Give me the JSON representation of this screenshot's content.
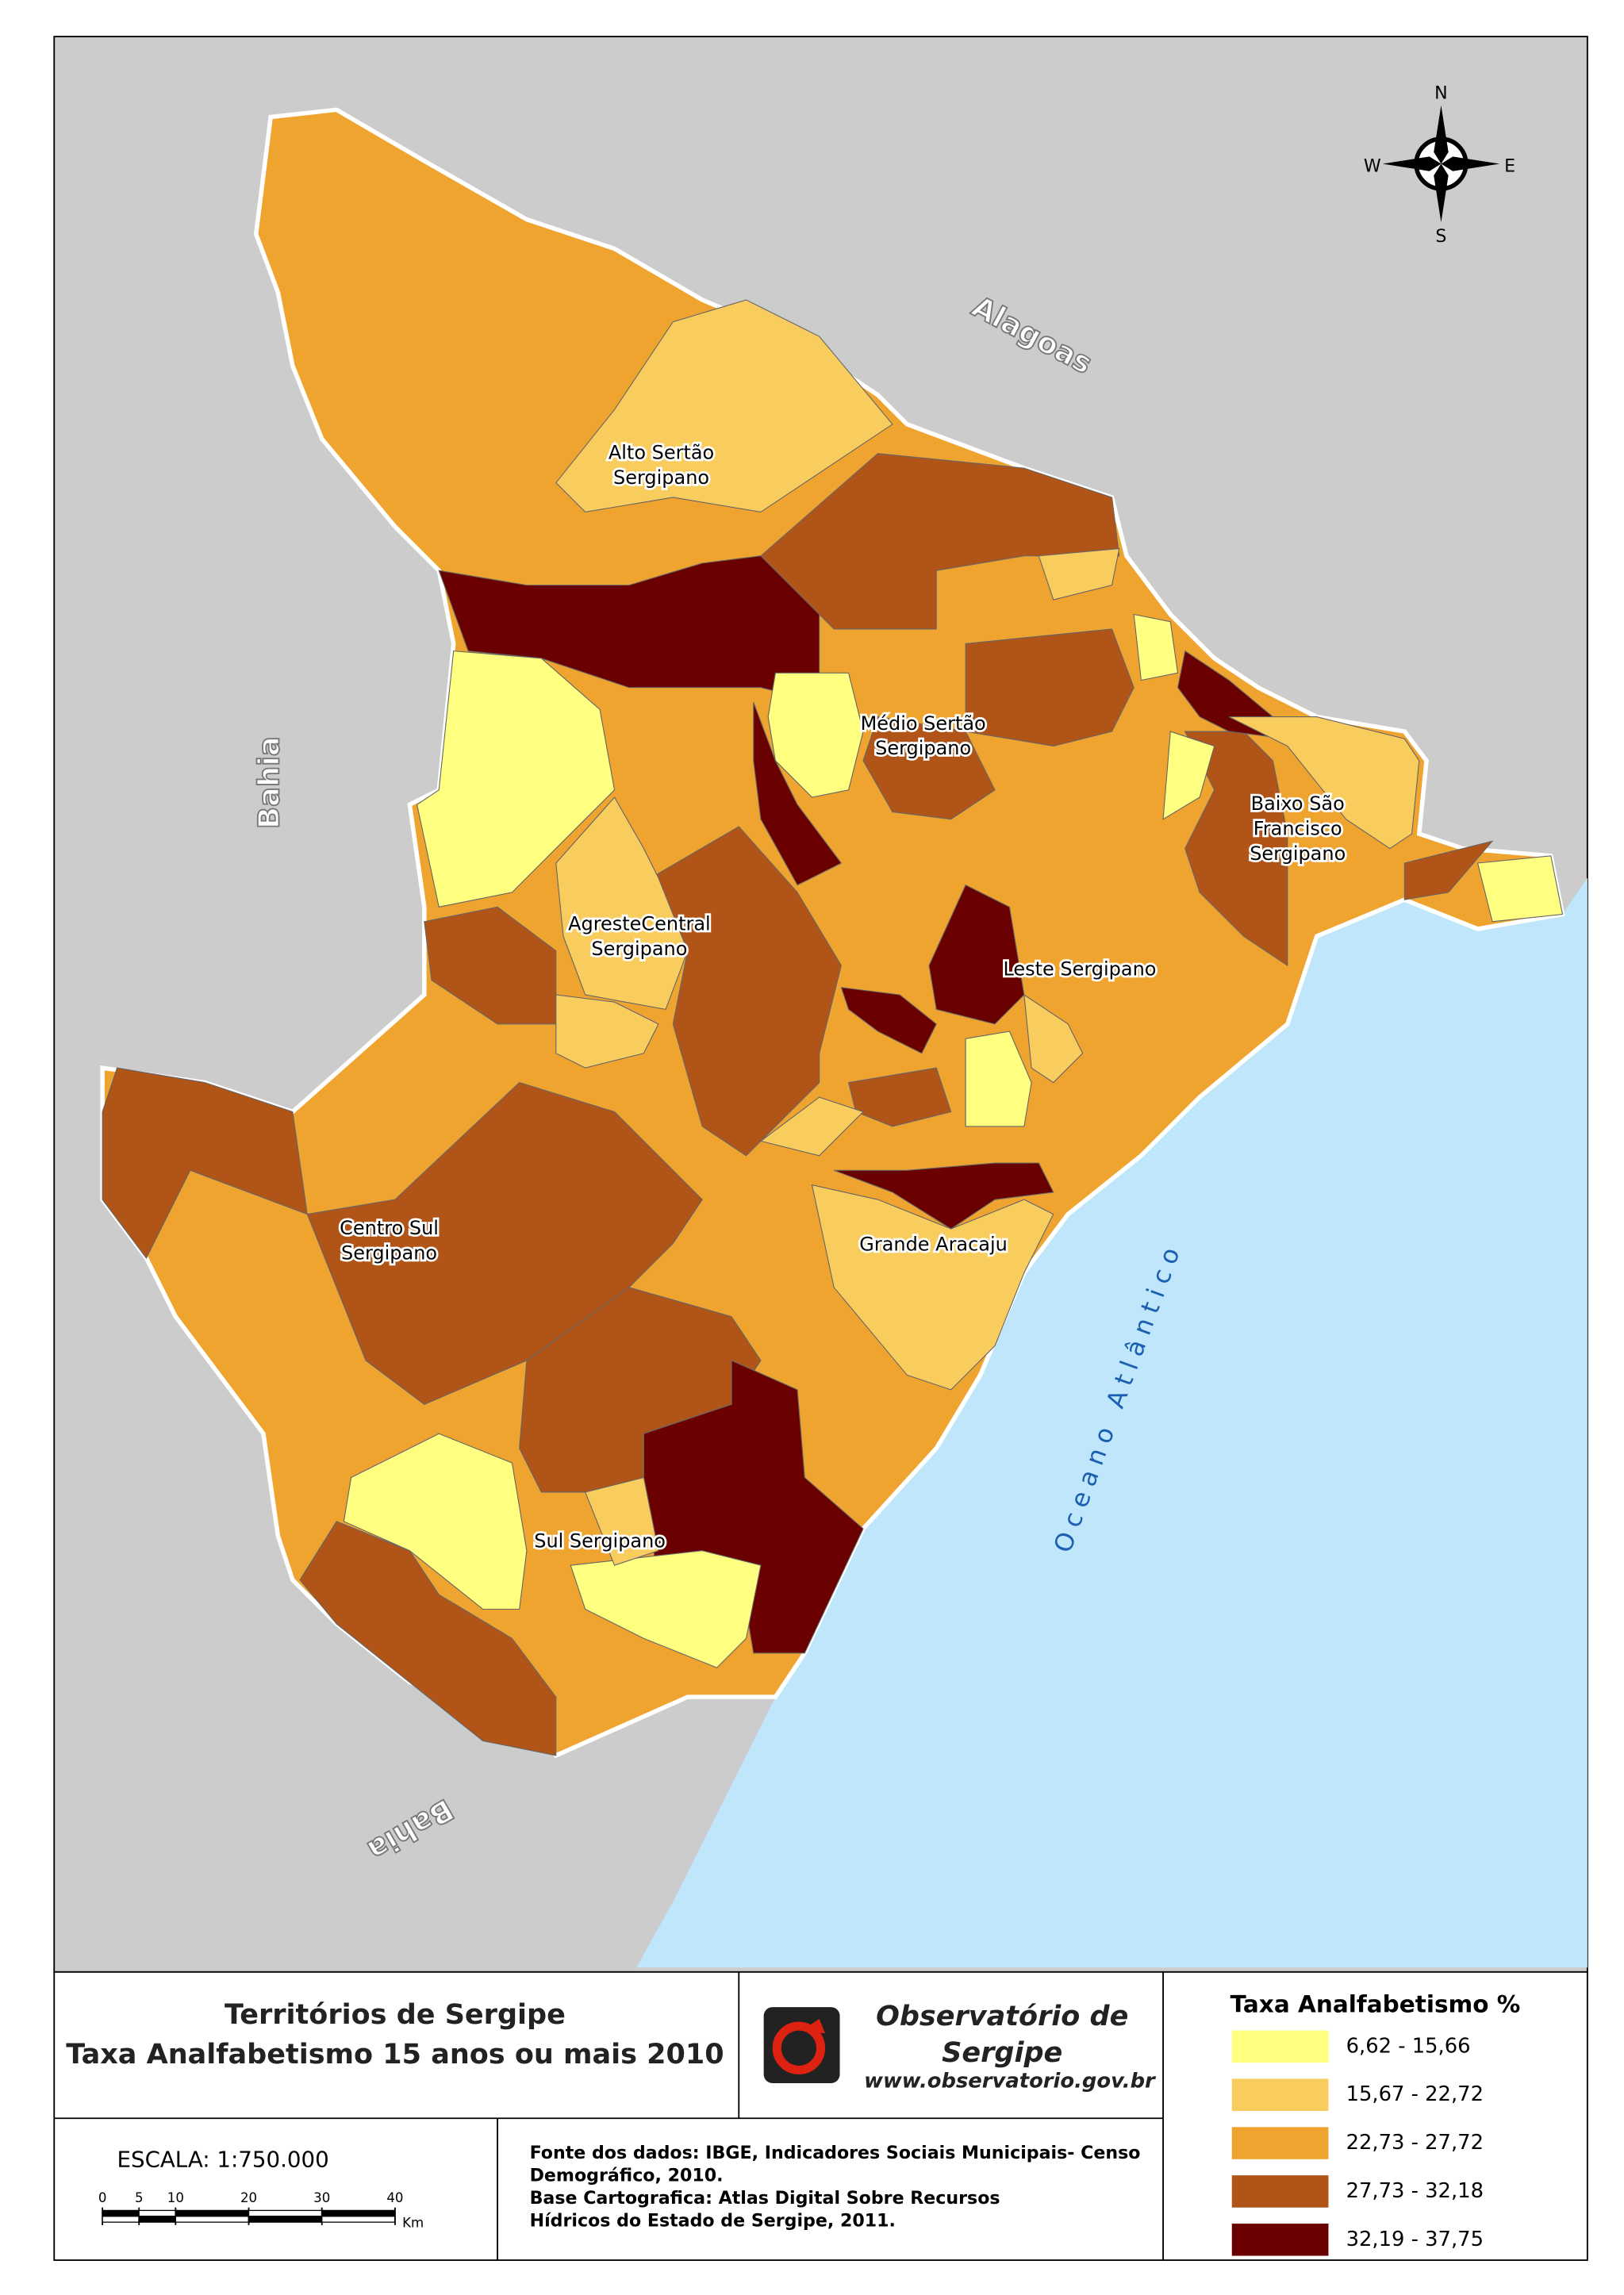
{
  "map": {
    "neighbors": [
      "Alagoas",
      "Bahia",
      "Bahia"
    ],
    "ocean": "Oceano Atlântico",
    "territories": [
      [
        "Alto Sertão",
        "Sergipano"
      ],
      [
        "Médio Sertão",
        "Sergipano"
      ],
      [
        "AgresteCentral",
        "Sergipano"
      ],
      [
        "Leste Sergipano"
      ],
      [
        "Baixo São",
        "Francisco",
        "Sergipano"
      ],
      [
        "Centro Sul",
        "Sergipano"
      ],
      [
        "Grande Aracaju"
      ],
      [
        "Sul Sergipano"
      ]
    ],
    "compass": {
      "n": "N",
      "s": "S",
      "e": "E",
      "w": "W"
    }
  },
  "title": [
    "Territórios de Sergipe",
    "Taxa Analfabetismo 15 anos ou mais 2010"
  ],
  "logo": {
    "name": [
      "Observatório de",
      "Sergipe"
    ],
    "url": "www.observatorio.gov.br"
  },
  "legend": {
    "title": "Taxa Analfabetismo %",
    "classes": [
      {
        "label": "6,62 - 15,66",
        "color": "#ffff80"
      },
      {
        "label": "15,67 - 22,72",
        "color": "#f9cd5d"
      },
      {
        "label": "22,73 - 27,72",
        "color": "#f0a430"
      },
      {
        "label": "27,73 - 32,18",
        "color": "#b05418"
      },
      {
        "label": "32,19 - 37,75",
        "color": "#6b0000"
      }
    ]
  },
  "scale": {
    "text": "ESCALA: 1:750.000",
    "ticks": [
      0,
      5,
      10,
      20,
      30,
      40
    ],
    "unit": "Km"
  },
  "source": [
    "Fonte dos dados: IBGE, Indicadores Sociais Municipais- Censo",
    "Demográfico, 2010.",
    "Base Cartografica: Atlas Digital Sobre Recursos",
    "Hídricos do Estado de Sergipe, 2011."
  ]
}
